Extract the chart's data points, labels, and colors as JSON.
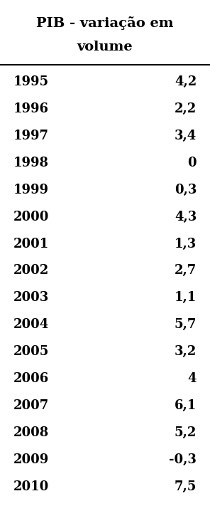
{
  "title_line1": "PIB - variação em",
  "title_line2": "volume",
  "years": [
    1995,
    1996,
    1997,
    1998,
    1999,
    2000,
    2001,
    2002,
    2003,
    2004,
    2005,
    2006,
    2007,
    2008,
    2009,
    2010
  ],
  "values": [
    "4,2",
    "2,2",
    "3,4",
    "0",
    "0,3",
    "4,3",
    "1,3",
    "2,7",
    "1,1",
    "5,7",
    "3,2",
    "4",
    "6,1",
    "5,2",
    "-0,3",
    "7,5"
  ],
  "background_color": "#ffffff",
  "text_color": "#000000",
  "font_size": 13,
  "title_font_size": 14
}
